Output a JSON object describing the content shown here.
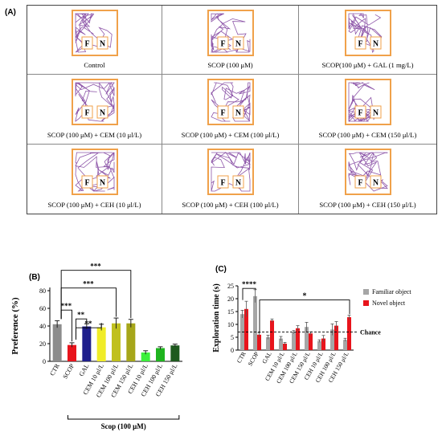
{
  "panel_a": {
    "label": "(A)",
    "cells": [
      {
        "caption": "Control"
      },
      {
        "caption": "SCOP (100 μM)"
      },
      {
        "caption": "SCOP(100 μM) + GAL (1 mg/L)"
      },
      {
        "caption": "SCOP (100 μM) + CEM (10 μl/L)"
      },
      {
        "caption": "SCOP (100 μM) + CEM (100 μl/L)"
      },
      {
        "caption": "SCOP (100 μM) + CEM (150 μl/L)"
      },
      {
        "caption": "SCOP (100 μM) + CEH (10 μl/L)"
      },
      {
        "caption": "SCOP (100 μM) + CEH (100 μl/L)"
      },
      {
        "caption": "SCOP (100 μM) + CEH (150 μl/L)"
      }
    ],
    "object_labels": {
      "familiar": "F",
      "novel": "N"
    },
    "colors": {
      "arena": "#f0a14a",
      "track": "#7a3a9a",
      "object_fill": "#ffffff"
    }
  },
  "chart_data": [
    {
      "panel": "(B)",
      "type": "bar",
      "ylabel": "Preference (%)",
      "ylim": [
        0,
        80
      ],
      "yticks": [
        0,
        20,
        40,
        60,
        80
      ],
      "categories": [
        "CTR",
        "SCOP",
        "GAL",
        "CEM 10 μl/L",
        "CEM 100 μl/L",
        "CEM 150 μl/L",
        "CEH 10 μl/L",
        "CEH 100 μl/L",
        "CEH 150 μl/L"
      ],
      "values": [
        42,
        18.5,
        39.5,
        38.5,
        43,
        43,
        10,
        15,
        18
      ],
      "errors": [
        4,
        2.5,
        3,
        3.5,
        6,
        4.5,
        2,
        1.5,
        1.5
      ],
      "colors": [
        "#8c8c8c",
        "#e8141c",
        "#1e1e8c",
        "#f0ec28",
        "#c0c01e",
        "#a6a61a",
        "#3cf03c",
        "#1eb41e",
        "#1e5a1e"
      ],
      "group_label": "Scop (100 μM)",
      "significance": [
        "***",
        "**",
        "**",
        "***",
        "***"
      ]
    },
    {
      "panel": "(C)",
      "type": "bar",
      "ylabel": "Exploration time (s)",
      "ylim": [
        0,
        25
      ],
      "yticks": [
        0,
        5,
        10,
        15,
        20,
        25
      ],
      "categories": [
        "CTR",
        "SCOP",
        "GAL",
        "CEM 10 μl/L",
        "CEM 100 μl/L",
        "CEM 150 μl/L",
        "CEH 10 μl/L",
        "CEH 100 μl/L",
        "CEH 150 μl/L"
      ],
      "series": [
        {
          "name": "Familiar object",
          "color": "#a6a6a6",
          "values": [
            14,
            21,
            5,
            4.5,
            7,
            9,
            3.5,
            8,
            4
          ],
          "errors": [
            1.5,
            2.5,
            0.8,
            0.8,
            0.6,
            1.8,
            0.5,
            2.2,
            0.6
          ]
        },
        {
          "name": "Novel object",
          "color": "#e8141c",
          "values": [
            16,
            6,
            11.5,
            2.5,
            8.5,
            6.5,
            4.5,
            9.5,
            12.8
          ],
          "errors": [
            3,
            0.8,
            0.6,
            0.5,
            1.0,
            0.6,
            1.2,
            1.6,
            0.8
          ]
        }
      ],
      "chance_level": 7,
      "chance_label": "Chance",
      "significance": [
        "****",
        "*"
      ],
      "legend_position": "right"
    }
  ]
}
